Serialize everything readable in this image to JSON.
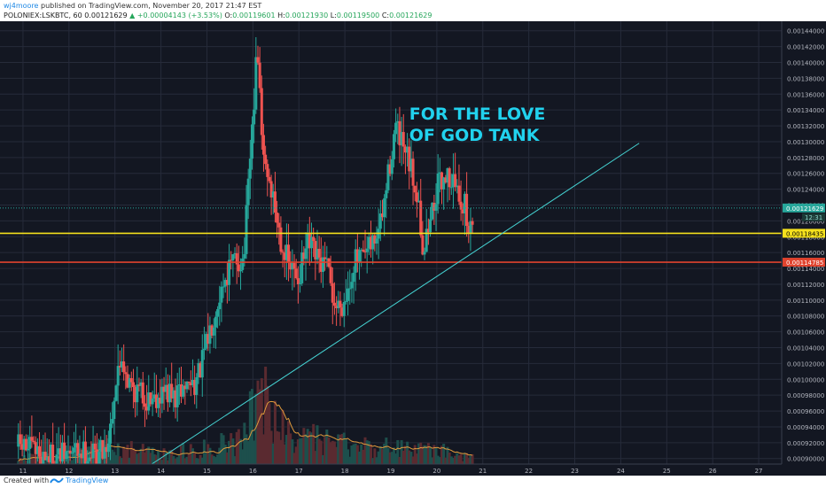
{
  "header": {
    "author": "wj4moore",
    "published_text": "published on TradingView.com, November 20, 2017 21:47 EST",
    "symbol": "POLONIEX:LSKBTC, 60",
    "last": "0.00121629",
    "change": "▲ +0.00004143 (+3.53%)",
    "o_label": "O:",
    "o_value": "0.00119601",
    "h_label": "H:",
    "h_value": "0.00121930",
    "l_label": "L:",
    "l_value": "0.00119500",
    "c_label": "C:",
    "c_value": "0.00121629"
  },
  "footer": {
    "created_with": "Created with",
    "brand": "TradingView"
  },
  "colors": {
    "background": "#131722",
    "grid": "#262b3a",
    "up": "#26a69a",
    "down": "#ef5350",
    "support_yellow": "#f5e11d",
    "support_red": "#e0432e",
    "trendline": "#45d3d3",
    "annotation": "#21d2ee",
    "volume_ma": "#e09a3c"
  },
  "chart_data": {
    "type": "candlestick",
    "timeframe": "60",
    "x_tick_labels": [
      "11",
      "12",
      "13",
      "14",
      "15",
      "16",
      "17",
      "18",
      "19",
      "20",
      "21",
      "22",
      "23",
      "24",
      "25",
      "26",
      "27"
    ],
    "y_tick_labels": [
      "0.00144000",
      "0.00142000",
      "0.00140000",
      "0.00138000",
      "0.00136000",
      "0.00134000",
      "0.00132000",
      "0.00130000",
      "0.00128000",
      "0.00126000",
      "0.00124000",
      "0.00122000",
      "0.00120000",
      "0.00118000",
      "0.00116000",
      "0.00114000",
      "0.00112000",
      "0.00110000",
      "0.00108000",
      "0.00106000",
      "0.00104000",
      "0.00102000",
      "0.00100000",
      "0.00098000",
      "0.00096000",
      "0.00094000",
      "0.00092000",
      "0.00090000"
    ],
    "ylim": [
      0.000893,
      0.001452
    ],
    "xlim_days": [
      10.5,
      27.5
    ],
    "price_labels": [
      {
        "value": 0.00121629,
        "label": "0.00121629",
        "color": "#26a69a"
      },
      {
        "value": 0.00118435,
        "label": "0.00118435",
        "color": "#f5e11d"
      },
      {
        "value": 0.00114785,
        "label": "0.00114785",
        "color": "#e0432e"
      }
    ],
    "countdown": "12:31",
    "horizontal_lines": [
      {
        "value": 0.00118435,
        "color": "#f5e11d"
      },
      {
        "value": 0.00114785,
        "color": "#e0432e"
      }
    ],
    "trendline": {
      "x1_day": 13.8,
      "y1": 0.000893,
      "x2_day": 24.4,
      "y2": 0.001298
    },
    "annotation": {
      "lines": [
        "FOR THE LOVE",
        "OF GOD TANK"
      ],
      "x_day": 19.4,
      "y": 0.001328
    },
    "ohlc_anchors": [
      [
        11.0,
        0.000915
      ],
      [
        11.4,
        0.000905
      ],
      [
        11.8,
        0.000902
      ],
      [
        12.2,
        0.00091
      ],
      [
        12.6,
        0.000905
      ],
      [
        12.85,
        0.00092
      ],
      [
        13.0,
        0.00099
      ],
      [
        13.15,
        0.00103
      ],
      [
        13.3,
        0.000995
      ],
      [
        13.5,
        0.000985
      ],
      [
        13.7,
        0.000975
      ],
      [
        13.9,
        0.00098
      ],
      [
        14.1,
        0.000985
      ],
      [
        14.3,
        0.000975
      ],
      [
        14.5,
        0.00099
      ],
      [
        14.8,
        0.001
      ],
      [
        15.0,
        0.001045
      ],
      [
        15.2,
        0.001095
      ],
      [
        15.4,
        0.00113
      ],
      [
        15.6,
        0.00115
      ],
      [
        15.8,
        0.00115
      ],
      [
        16.0,
        0.00133
      ],
      [
        16.1,
        0.00142
      ],
      [
        16.2,
        0.00129
      ],
      [
        16.4,
        0.00124
      ],
      [
        16.6,
        0.00118
      ],
      [
        16.8,
        0.00114
      ],
      [
        17.0,
        0.00113
      ],
      [
        17.2,
        0.00117
      ],
      [
        17.4,
        0.00115
      ],
      [
        17.6,
        0.00114
      ],
      [
        17.8,
        0.00109
      ],
      [
        18.0,
        0.0011
      ],
      [
        18.2,
        0.00115
      ],
      [
        18.4,
        0.00115
      ],
      [
        18.6,
        0.00117
      ],
      [
        18.8,
        0.0012
      ],
      [
        19.0,
        0.00128
      ],
      [
        19.1,
        0.00132
      ],
      [
        19.2,
        0.0013
      ],
      [
        19.4,
        0.00127
      ],
      [
        19.6,
        0.00123
      ],
      [
        19.7,
        0.00116
      ],
      [
        19.85,
        0.0012
      ],
      [
        20.0,
        0.00124
      ],
      [
        20.2,
        0.00126
      ],
      [
        20.35,
        0.00125
      ],
      [
        20.5,
        0.00123
      ],
      [
        20.6,
        0.00122
      ],
      [
        20.72,
        0.00118
      ],
      [
        20.8,
        0.001216
      ]
    ],
    "volume_profile": [
      [
        11.0,
        0.1
      ],
      [
        12.0,
        0.08
      ],
      [
        13.0,
        0.25
      ],
      [
        14.0,
        0.12
      ],
      [
        15.0,
        0.22
      ],
      [
        15.6,
        0.3
      ],
      [
        16.0,
        0.75
      ],
      [
        16.2,
        0.95
      ],
      [
        16.5,
        0.5
      ],
      [
        17.0,
        0.35
      ],
      [
        18.0,
        0.25
      ],
      [
        19.0,
        0.22
      ],
      [
        20.0,
        0.18
      ],
      [
        20.8,
        0.08
      ]
    ]
  }
}
